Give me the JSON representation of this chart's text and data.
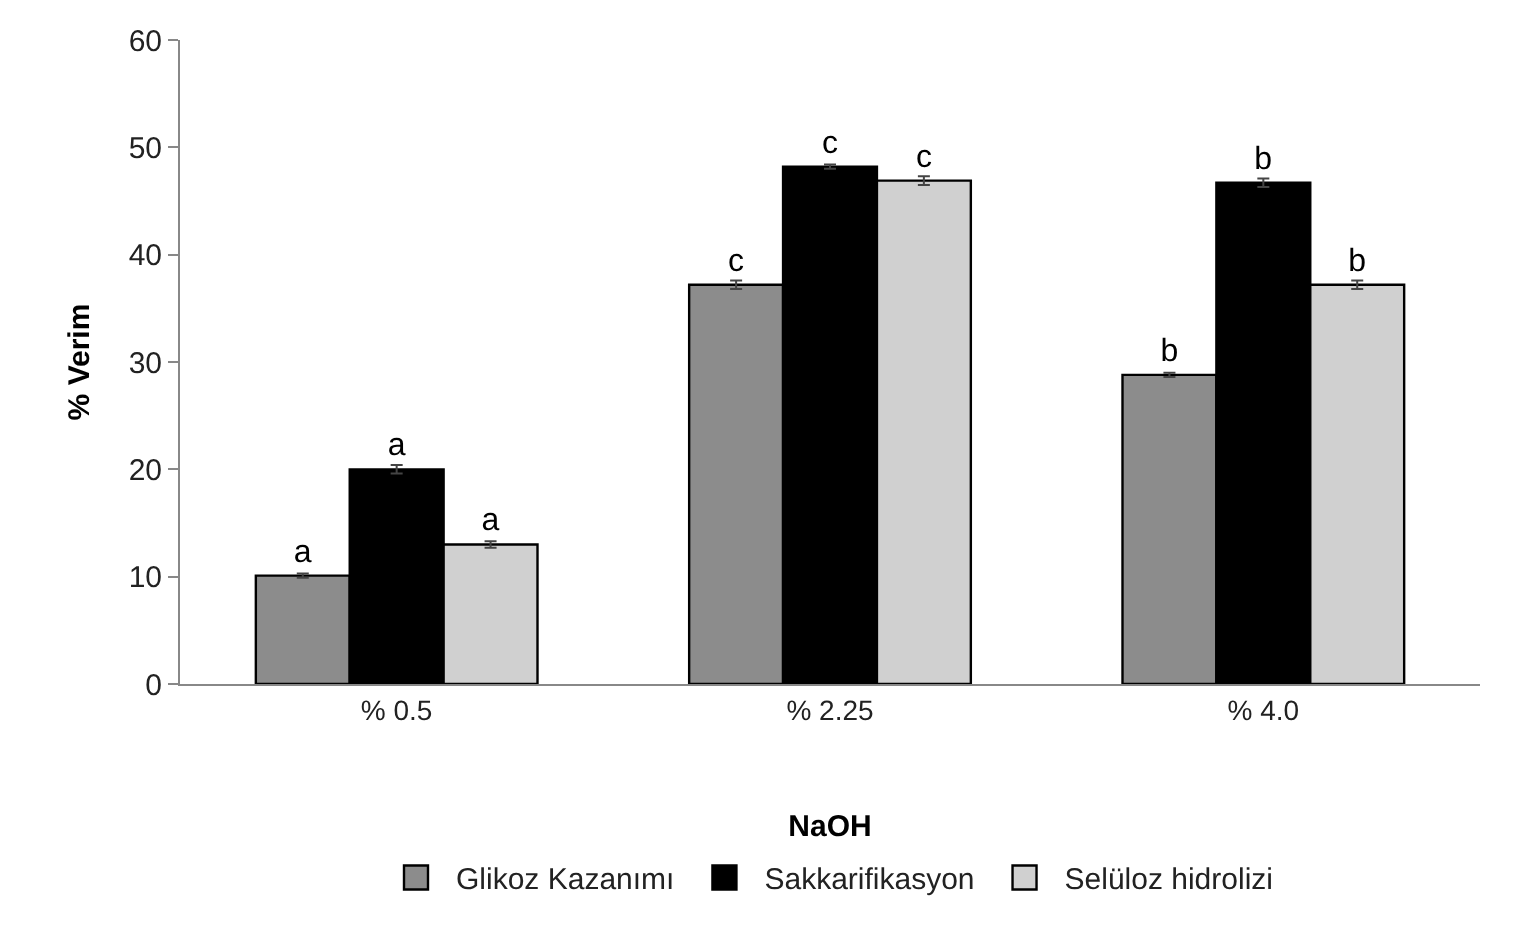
{
  "chart_data": {
    "type": "bar",
    "xlabel": "NaOH",
    "ylabel": "% Verim",
    "categories": [
      "% 0.5",
      "% 2.25",
      "% 4.0"
    ],
    "series": [
      {
        "name": "Glikoz Kazanımı",
        "color": "#8c8c8c",
        "values": [
          10.1,
          37.2,
          28.8
        ],
        "errors": [
          0.2,
          0.4,
          0.2
        ],
        "value_labels": [
          "a",
          "c",
          "b"
        ]
      },
      {
        "name": "Sakkarifikasyon",
        "color": "#000000",
        "values": [
          20.0,
          48.2,
          46.7
        ],
        "errors": [
          0.4,
          0.2,
          0.4
        ],
        "value_labels": [
          "a",
          "c",
          "b"
        ]
      },
      {
        "name": "Selüloz hidrolizi",
        "color": "#d0d0d0",
        "values": [
          13.0,
          46.9,
          37.2
        ],
        "errors": [
          0.3,
          0.4,
          0.4
        ],
        "value_labels": [
          "a",
          "c",
          "b"
        ]
      }
    ],
    "ylim": [
      0,
      60
    ],
    "yticks": [
      0,
      10,
      20,
      30,
      40,
      50,
      60
    ],
    "legend": "bottom"
  }
}
